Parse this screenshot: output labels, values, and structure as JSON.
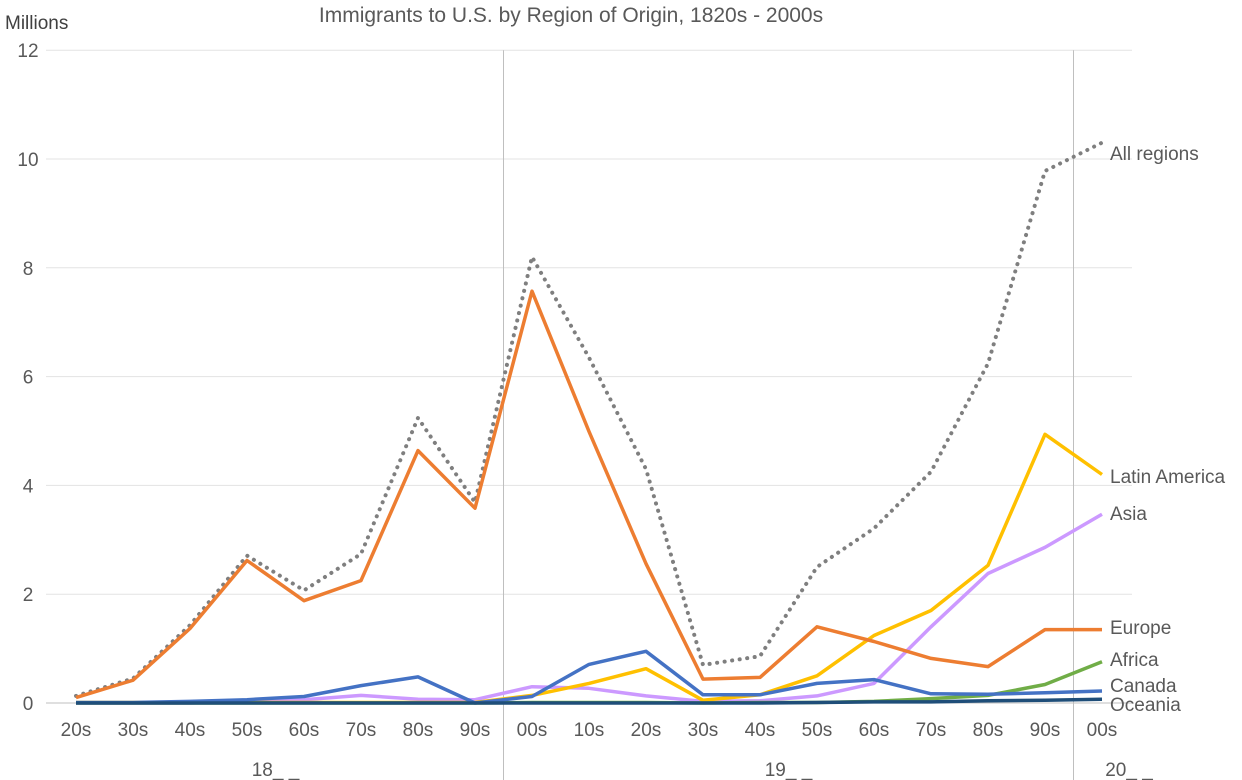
{
  "chart_data": {
    "type": "line",
    "title": "Immigrants to U.S. by Region of Origin, 1820s - 2000s",
    "ylabel": "Millions",
    "ylim": [
      0,
      12
    ],
    "yticks": [
      0,
      2,
      4,
      6,
      8,
      10,
      12
    ],
    "grid": true,
    "categories": [
      "20s",
      "30s",
      "40s",
      "50s",
      "60s",
      "70s",
      "80s",
      "90s",
      "00s",
      "10s",
      "20s",
      "30s",
      "40s",
      "50s",
      "60s",
      "70s",
      "80s",
      "90s",
      "00s"
    ],
    "groups": [
      {
        "label": "18_ _",
        "start": 0,
        "end": 7
      },
      {
        "label": "19_ _",
        "start": 8,
        "end": 17
      },
      {
        "label": "20_ _",
        "start": 18,
        "end": 18
      }
    ],
    "series": [
      {
        "name": "All regions",
        "color": "#7f7f7f",
        "dashed": true,
        "values": [
          0.13,
          0.45,
          1.43,
          2.71,
          2.07,
          2.74,
          5.24,
          3.69,
          8.2,
          6.35,
          4.3,
          0.7,
          0.86,
          2.5,
          3.21,
          4.25,
          6.24,
          9.78,
          10.3
        ]
      },
      {
        "name": "Europe",
        "color": "#ed7d31",
        "dashed": false,
        "values": [
          0.1,
          0.42,
          1.37,
          2.62,
          1.88,
          2.25,
          4.64,
          3.58,
          7.57,
          4.99,
          2.56,
          0.44,
          0.47,
          1.4,
          1.13,
          0.82,
          0.67,
          1.35,
          1.35
        ]
      },
      {
        "name": "Latin America",
        "color": "#ffc000",
        "dashed": false,
        "values": [
          0.01,
          0.01,
          0.01,
          0.01,
          0.01,
          0.01,
          0.01,
          0.01,
          0.14,
          0.36,
          0.63,
          0.05,
          0.15,
          0.5,
          1.24,
          1.7,
          2.53,
          4.94,
          4.2
        ]
      },
      {
        "name": "Asia",
        "color": "#cc99ff",
        "dashed": false,
        "values": [
          0.0,
          0.0,
          0.0,
          0.04,
          0.06,
          0.14,
          0.07,
          0.06,
          0.3,
          0.27,
          0.13,
          0.03,
          0.04,
          0.13,
          0.36,
          1.4,
          2.38,
          2.86,
          3.47
        ]
      },
      {
        "name": "Africa",
        "color": "#70ad47",
        "dashed": false,
        "values": [
          0.0,
          0.0,
          0.0,
          0.0,
          0.0,
          0.0,
          0.0,
          0.0,
          0.01,
          0.01,
          0.01,
          0.0,
          0.01,
          0.01,
          0.03,
          0.08,
          0.14,
          0.34,
          0.76
        ]
      },
      {
        "name": "Canada",
        "color": "#4472c4",
        "dashed": false,
        "values": [
          0.01,
          0.01,
          0.03,
          0.06,
          0.12,
          0.32,
          0.48,
          0.0,
          0.12,
          0.71,
          0.95,
          0.15,
          0.15,
          0.36,
          0.43,
          0.17,
          0.16,
          0.19,
          0.22
        ]
      },
      {
        "name": "Oceania",
        "color": "#1f4e79",
        "dashed": false,
        "values": [
          0.0,
          0.0,
          0.0,
          0.0,
          0.0,
          0.0,
          0.0,
          0.0,
          0.0,
          0.0,
          0.0,
          0.0,
          0.0,
          0.01,
          0.02,
          0.02,
          0.04,
          0.05,
          0.07
        ]
      }
    ]
  }
}
